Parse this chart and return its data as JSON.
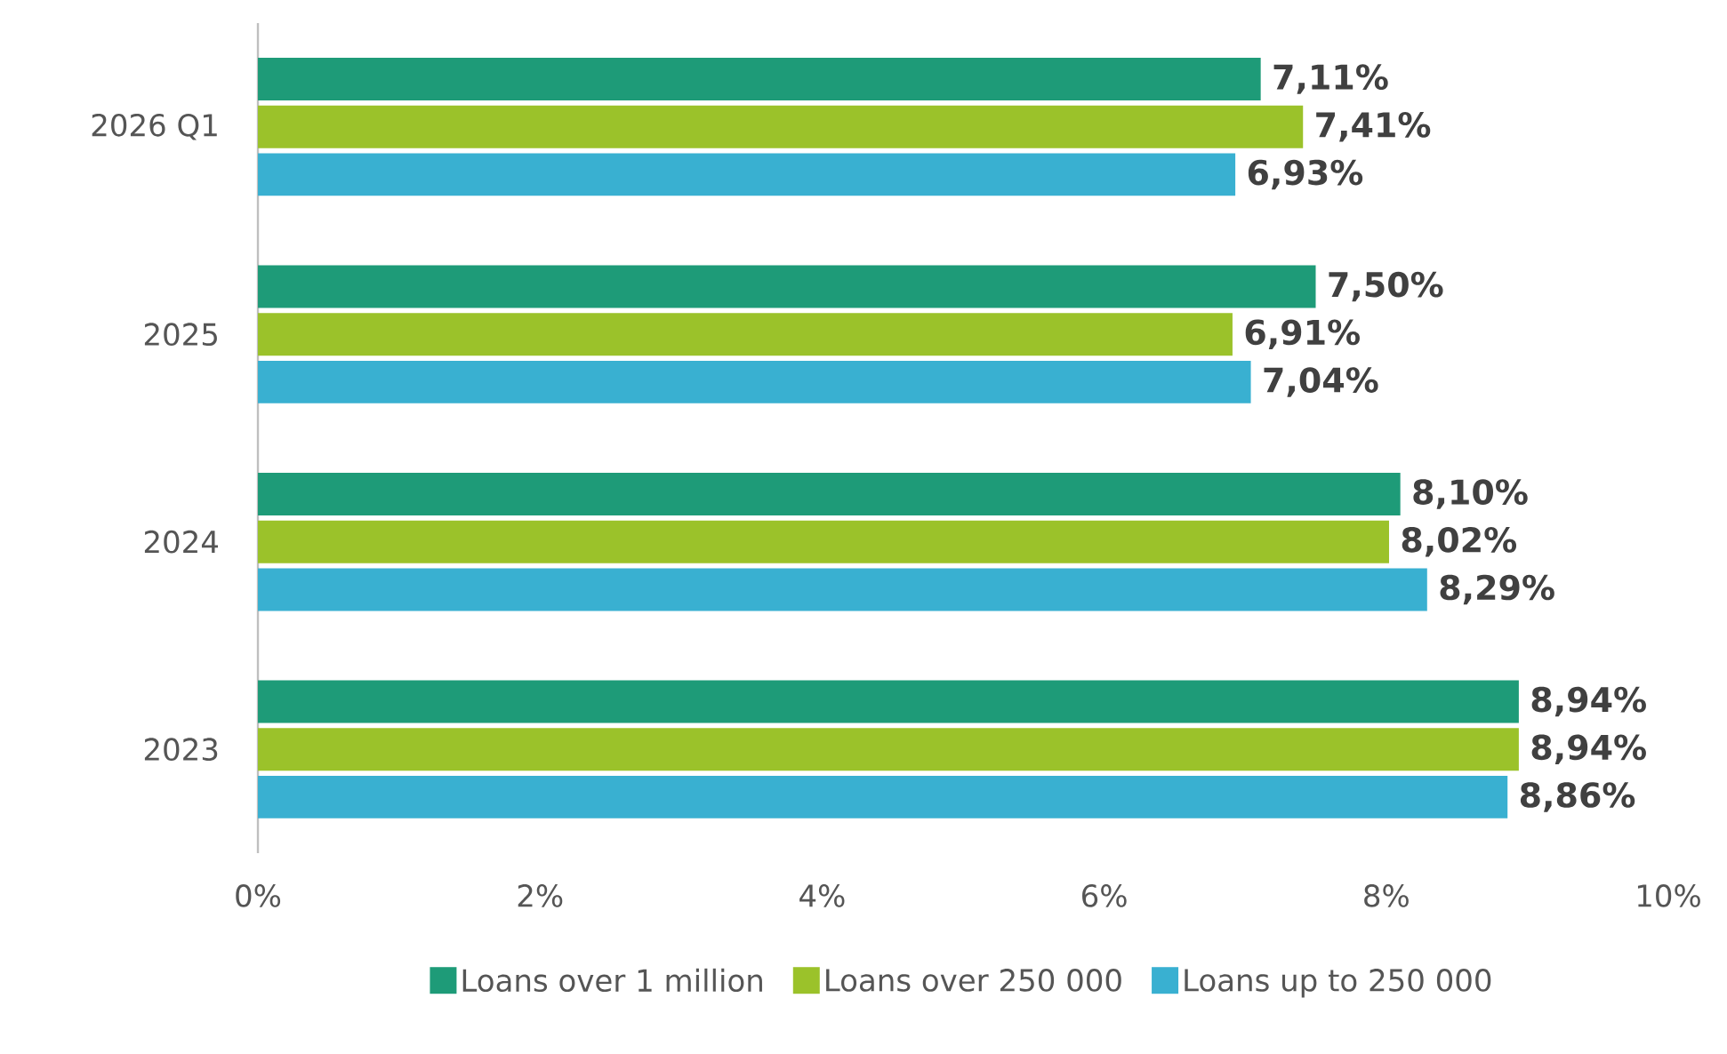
{
  "chart_data": {
    "type": "bar",
    "orientation": "horizontal",
    "categories": [
      "2026 Q1",
      "2025",
      "2024",
      "2023"
    ],
    "series": [
      {
        "name": "Loans over 1 million",
        "color": "#1e9b78",
        "values": [
          7.11,
          7.5,
          8.1,
          8.94
        ],
        "value_labels": [
          "7,11%",
          "7,50%",
          "8,10%",
          "8,94%"
        ]
      },
      {
        "name": "Loans over 250 000",
        "color": "#9bc22a",
        "values": [
          7.41,
          6.91,
          8.02,
          8.94
        ],
        "value_labels": [
          "7,41%",
          "6,91%",
          "8,02%",
          "8,94%"
        ]
      },
      {
        "name": "Loans up to 250 000",
        "color": "#39b0d1",
        "values": [
          6.93,
          7.04,
          8.29,
          8.86
        ],
        "value_labels": [
          "6,93%",
          "7,04%",
          "8,29%",
          "8,86%"
        ]
      }
    ],
    "xlim": [
      0,
      10
    ],
    "xticks": [
      {
        "value": 0,
        "label": "0%"
      },
      {
        "value": 2,
        "label": "2%"
      },
      {
        "value": 4,
        "label": "4%"
      },
      {
        "value": 6,
        "label": "6%"
      },
      {
        "value": 8,
        "label": "8%"
      },
      {
        "value": 10,
        "label": "10%"
      }
    ],
    "grid": false,
    "legend": "bottom"
  }
}
